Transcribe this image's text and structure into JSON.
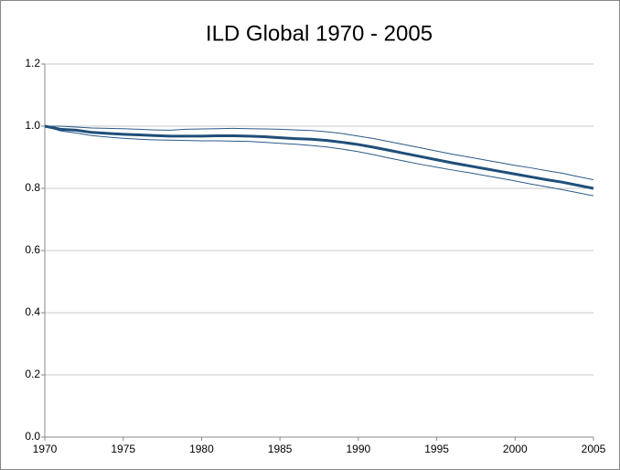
{
  "chart_data": {
    "type": "line",
    "title": "ILD Global 1970 - 2005",
    "x": [
      1970,
      1971,
      1972,
      1973,
      1974,
      1975,
      1976,
      1977,
      1978,
      1979,
      1980,
      1981,
      1982,
      1983,
      1984,
      1985,
      1986,
      1987,
      1988,
      1989,
      1990,
      1991,
      1992,
      1993,
      1994,
      1995,
      1996,
      1997,
      1998,
      1999,
      2000,
      2001,
      2002,
      2003,
      2004,
      2005
    ],
    "series": [
      {
        "color": "#2a5a8a",
        "width": 1,
        "values": [
          1.0,
          1.0,
          0.997,
          0.994,
          0.993,
          0.992,
          0.99,
          0.988,
          0.987,
          0.99,
          0.991,
          0.992,
          0.993,
          0.992,
          0.991,
          0.99,
          0.988,
          0.986,
          0.982,
          0.976,
          0.968,
          0.96,
          0.95,
          0.94,
          0.93,
          0.92,
          0.91,
          0.901,
          0.892,
          0.883,
          0.874,
          0.866,
          0.857,
          0.849,
          0.838,
          0.828
        ]
      },
      {
        "color": "#2a5a8a",
        "width": 1,
        "values": [
          1.0,
          0.985,
          0.978,
          0.97,
          0.965,
          0.961,
          0.958,
          0.956,
          0.955,
          0.954,
          0.953,
          0.953,
          0.952,
          0.951,
          0.948,
          0.945,
          0.942,
          0.938,
          0.933,
          0.926,
          0.918,
          0.908,
          0.897,
          0.887,
          0.877,
          0.868,
          0.859,
          0.851,
          0.842,
          0.833,
          0.824,
          0.814,
          0.805,
          0.796,
          0.786,
          0.776
        ]
      },
      {
        "color": "#1f4e79",
        "width": 3,
        "values": [
          1.0,
          0.99,
          0.987,
          0.98,
          0.977,
          0.974,
          0.972,
          0.97,
          0.968,
          0.968,
          0.968,
          0.969,
          0.969,
          0.968,
          0.966,
          0.963,
          0.96,
          0.958,
          0.954,
          0.948,
          0.941,
          0.932,
          0.922,
          0.912,
          0.902,
          0.892,
          0.882,
          0.873,
          0.864,
          0.855,
          0.846,
          0.837,
          0.828,
          0.82,
          0.81,
          0.8
        ]
      }
    ],
    "xlim": [
      1970,
      2005
    ],
    "xticks": [
      1970,
      1975,
      1980,
      1985,
      1990,
      1995,
      2000,
      2005
    ],
    "ylim": [
      0,
      1.2
    ],
    "yticks": [
      {
        "value": 0,
        "label": "0.0"
      },
      0.2,
      0.4,
      0.6,
      0.8,
      {
        "value": 1,
        "label": "1.0"
      },
      1.2
    ],
    "grid": true
  }
}
